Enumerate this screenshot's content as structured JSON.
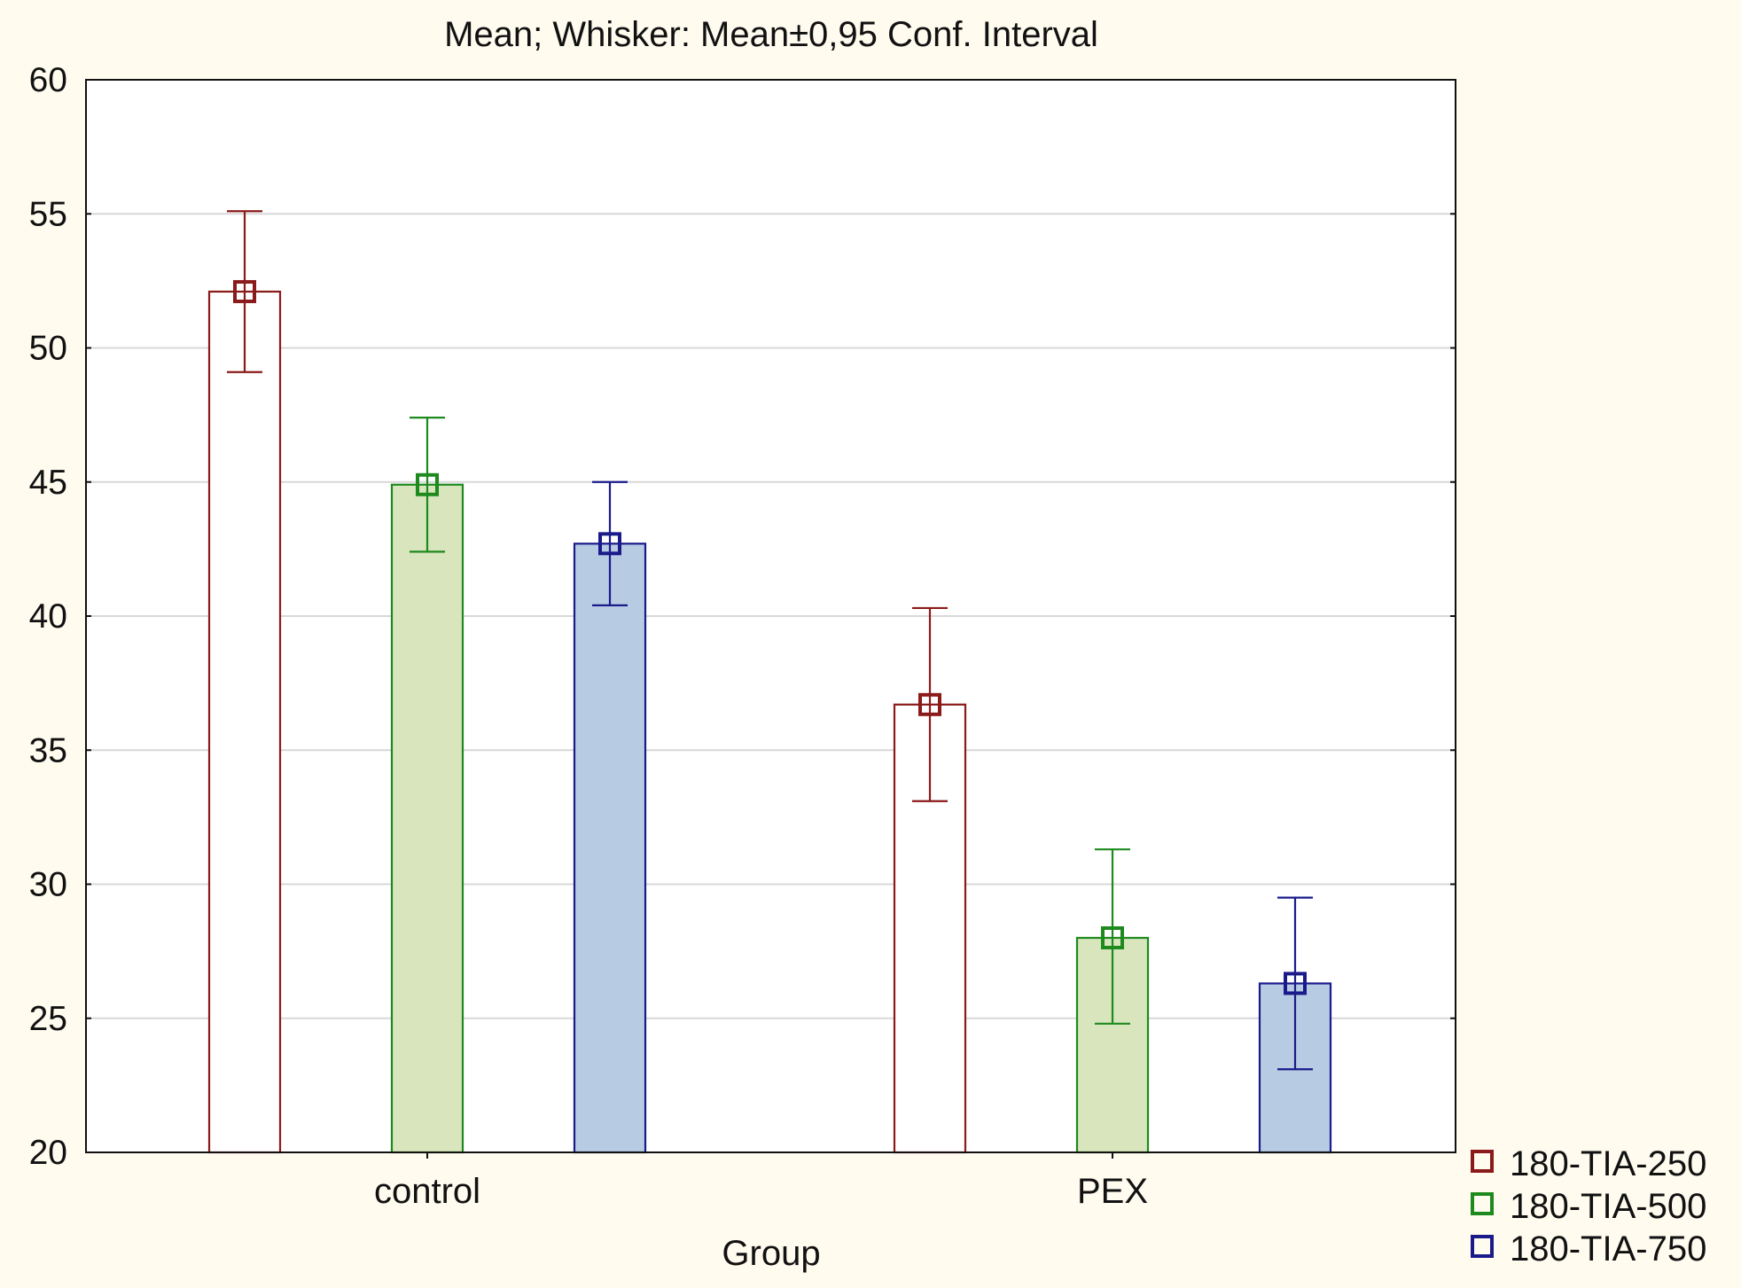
{
  "chart_data": {
    "type": "bar",
    "title": "Mean; Whisker: Mean±0,95 Conf. Interval",
    "xlabel": "Group",
    "ylabel": "",
    "ylim": [
      20,
      60
    ],
    "yticks": [
      20,
      25,
      30,
      35,
      40,
      45,
      50,
      55,
      60
    ],
    "ytick_labels": [
      "20",
      "25",
      "30",
      "35",
      "40",
      "45",
      "50",
      "55",
      "60"
    ],
    "grid": true,
    "legend_position": "bottom-right, outside plot",
    "categories": [
      "control",
      "PEX"
    ],
    "series": [
      {
        "name": "180-TIA-250",
        "color": "#8b1a1a",
        "fill": "#ffffff",
        "values": [
          52.1,
          36.7
        ],
        "ci_low": [
          49.1,
          33.1
        ],
        "ci_high": [
          55.1,
          40.3
        ]
      },
      {
        "name": "180-TIA-500",
        "color": "#1e8a1e",
        "fill": "#d8e5bd",
        "values": [
          44.9,
          28.0
        ],
        "ci_low": [
          42.4,
          24.8
        ],
        "ci_high": [
          47.4,
          31.3
        ]
      },
      {
        "name": "180-TIA-750",
        "color": "#1a1a8b",
        "fill": "#b7cce3",
        "values": [
          42.7,
          26.3
        ],
        "ci_low": [
          40.4,
          23.1
        ],
        "ci_high": [
          45.0,
          29.5
        ]
      }
    ],
    "background_color": "#fffbef",
    "plot_background_color": "#ffffff"
  }
}
